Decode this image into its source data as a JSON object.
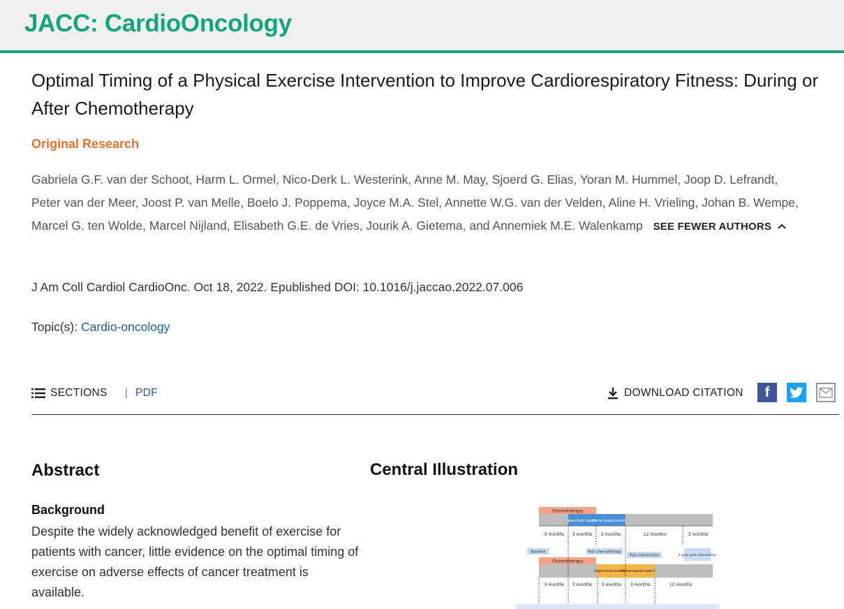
{
  "journal": "JACC: CardioOncology",
  "article": {
    "title": "Optimal Timing of a Physical Exercise Intervention to Improve Cardiorespiratory Fitness: During or After Chemotherapy",
    "category": "Original Research",
    "authors": "Gabriela G.F. van der Schoot, Harm L. Ormel, Nico-Derk L. Westerink, Anne M. May, Sjoerd G. Elias, Yoran M. Hummel, Joop D. Lefrandt, Peter van der Meer, Joost P. van Melle, Boelo J. Poppema, Joyce M.A. Stel, Annette W.G. van der Velden, Aline H. Vrieling, Johan B. Wempe, Marcel G. ten Wolde, Marcel Nijland, Elisabeth G.E. de Vries, Jourik A. Gietema, and Annemiek M.E. Walenkamp",
    "see_fewer_label": "SEE FEWER AUTHORS",
    "citation": "J Am Coll Cardiol CardioOnc. Oct 18, 2022. Epublished DOI: 10.1016/j.jaccao.2022.07.006",
    "topics_label": "Topic(s):",
    "topic": "Cardio-oncology"
  },
  "toolbar": {
    "sections_label": "SECTIONS",
    "separator": "|",
    "pdf_label": "PDF",
    "download_label": "DOWNLOAD CITATION",
    "facebook_glyph": "f"
  },
  "abstract": {
    "heading": "Abstract",
    "background_heading": "Background",
    "background_text": "Despite the widely acknowledged benefit of exercise for patients with cancer, little evidence on the optimal timing of exercise on adverse effects of cancer treatment is available."
  },
  "central": {
    "heading": "Central Illustration",
    "chemo": "Chemotherapy",
    "supervised": "Supervised exercise",
    "home": "Home-based exercise",
    "xmonths": "X months",
    "m3": "3 months",
    "m12": "12 months",
    "baseline": "Baseline",
    "post_chemo": "Post chemotherapy",
    "post_intervention": "Post intervention",
    "one_year": "1 year post intervention"
  },
  "colors": {
    "accent": "#16a37f",
    "category": "#e8722c",
    "link": "#1f5f8b"
  }
}
